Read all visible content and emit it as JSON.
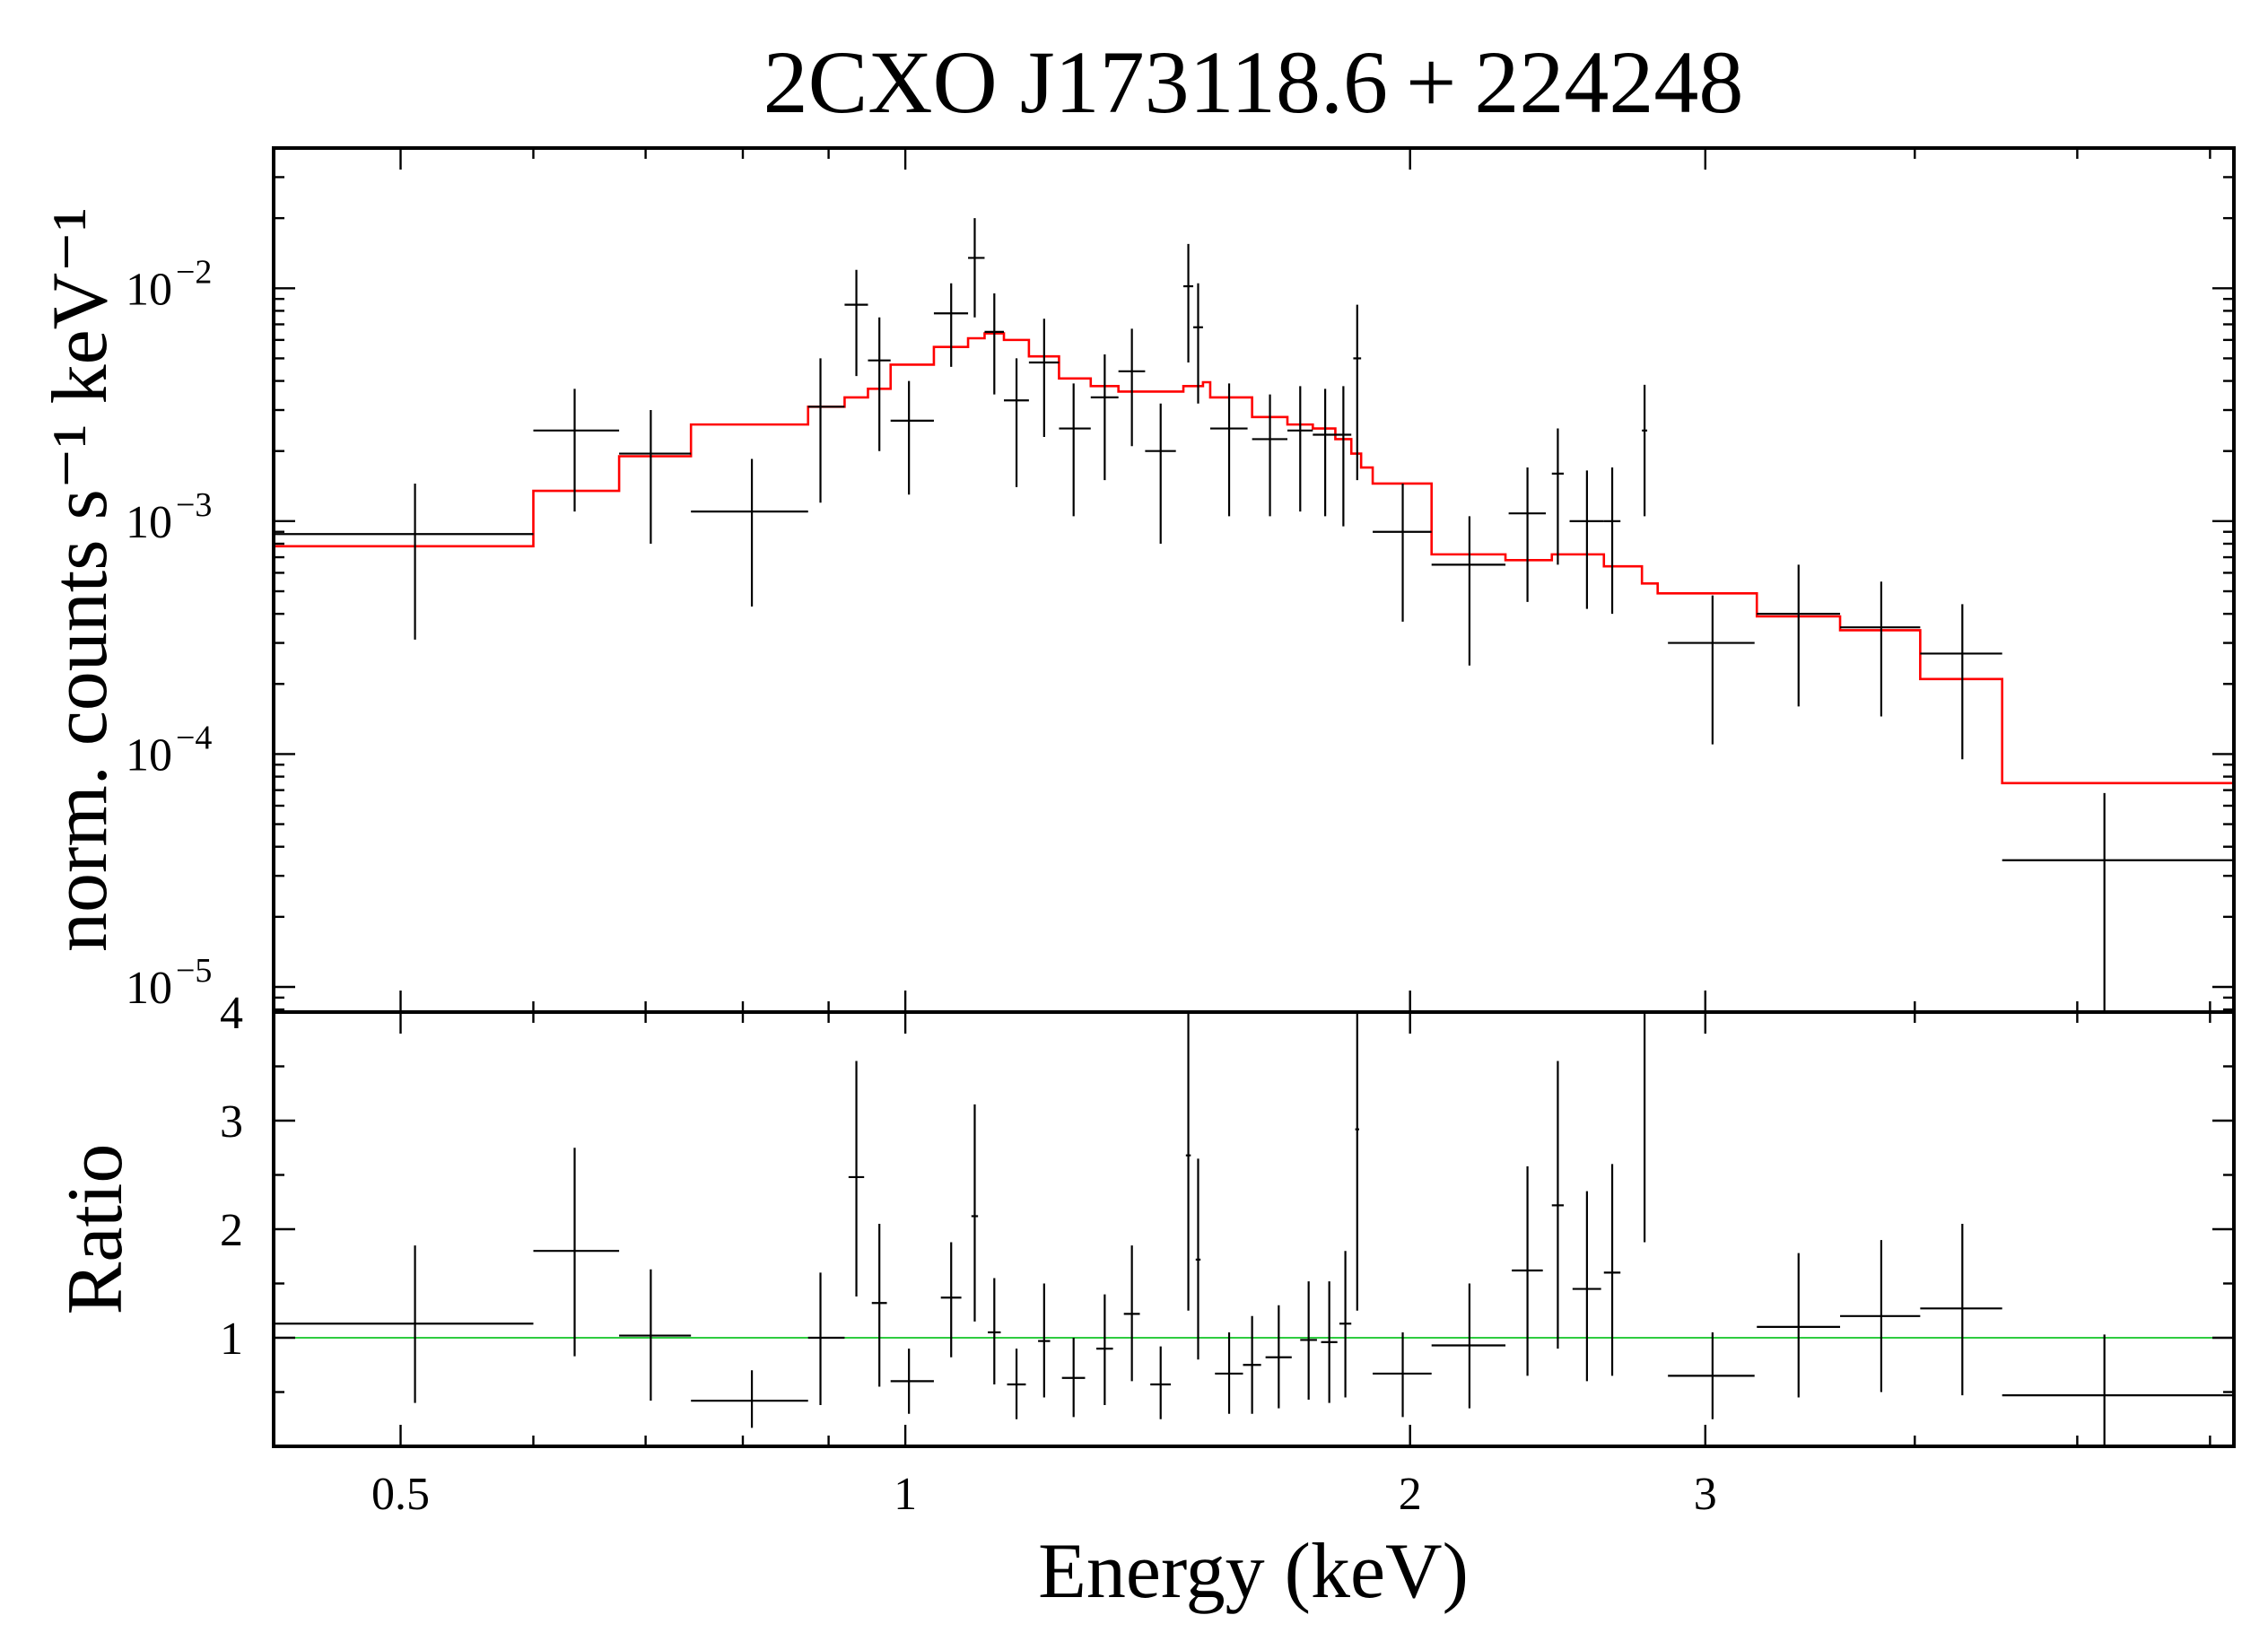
{
  "chart_data": [
    {
      "type": "scatter",
      "panel": "spectrum",
      "title": "2CXO J173118.6 + 224248",
      "ylabel": "norm. counts s⁻¹ keV⁻¹",
      "xscale": "log",
      "yscale": "log",
      "xlim": [
        0.42,
        6.2
      ],
      "ylim": [
        7.8e-06,
        0.04
      ],
      "yticks": [
        {
          "value": 1e-05,
          "base": "10",
          "exp": "−5"
        },
        {
          "value": 0.0001,
          "base": "10",
          "exp": "−4"
        },
        {
          "value": 0.001,
          "base": "10",
          "exp": "−3"
        },
        {
          "value": 0.01,
          "base": "10",
          "exp": "−2"
        }
      ],
      "series": [
        {
          "kind": "data",
          "color": "#000000",
          "points": [
            {
              "x": 0.51,
              "xlo": 0.42,
              "xhi": 0.6,
              "y": 0.00088,
              "ylo": 0.00031,
              "yhi": 0.00145
            },
            {
              "x": 0.635,
              "xlo": 0.6,
              "xhi": 0.675,
              "y": 0.00245,
              "ylo": 0.0011,
              "yhi": 0.0037
            },
            {
              "x": 0.705,
              "xlo": 0.675,
              "xhi": 0.745,
              "y": 0.00195,
              "ylo": 0.0008,
              "yhi": 0.003
            },
            {
              "x": 0.81,
              "xlo": 0.745,
              "xhi": 0.875,
              "y": 0.0011,
              "ylo": 0.00043,
              "yhi": 0.00185
            },
            {
              "x": 0.89,
              "xlo": 0.875,
              "xhi": 0.92,
              "y": 0.0031,
              "ylo": 0.0012,
              "yhi": 0.005
            },
            {
              "x": 0.935,
              "xlo": 0.92,
              "xhi": 0.95,
              "y": 0.0085,
              "ylo": 0.0042,
              "yhi": 0.012
            },
            {
              "x": 0.965,
              "xlo": 0.95,
              "xhi": 0.98,
              "y": 0.0049,
              "ylo": 0.002,
              "yhi": 0.0075
            },
            {
              "x": 1.005,
              "xlo": 0.98,
              "xhi": 1.04,
              "y": 0.0027,
              "ylo": 0.0013,
              "yhi": 0.004
            },
            {
              "x": 1.065,
              "xlo": 1.04,
              "xhi": 1.09,
              "y": 0.0078,
              "ylo": 0.0046,
              "yhi": 0.0105
            },
            {
              "x": 1.1,
              "xlo": 1.09,
              "xhi": 1.115,
              "y": 0.0135,
              "ylo": 0.0075,
              "yhi": 0.02
            },
            {
              "x": 1.13,
              "xlo": 1.115,
              "xhi": 1.145,
              "y": 0.0065,
              "ylo": 0.0035,
              "yhi": 0.0095
            },
            {
              "x": 1.165,
              "xlo": 1.145,
              "xhi": 1.185,
              "y": 0.0033,
              "ylo": 0.0014,
              "yhi": 0.005
            },
            {
              "x": 1.21,
              "xlo": 1.185,
              "xhi": 1.235,
              "y": 0.0048,
              "ylo": 0.0023,
              "yhi": 0.0074
            },
            {
              "x": 1.26,
              "xlo": 1.235,
              "xhi": 1.29,
              "y": 0.0025,
              "ylo": 0.00105,
              "yhi": 0.0039
            },
            {
              "x": 1.315,
              "xlo": 1.29,
              "xhi": 1.34,
              "y": 0.0034,
              "ylo": 0.0015,
              "yhi": 0.0052
            },
            {
              "x": 1.365,
              "xlo": 1.34,
              "xhi": 1.39,
              "y": 0.0044,
              "ylo": 0.0021,
              "yhi": 0.0067
            },
            {
              "x": 1.42,
              "xlo": 1.39,
              "xhi": 1.45,
              "y": 0.002,
              "ylo": 0.0008,
              "yhi": 0.0032
            },
            {
              "x": 1.475,
              "xlo": 1.465,
              "xhi": 1.485,
              "y": 0.0102,
              "ylo": 0.0048,
              "yhi": 0.0155
            },
            {
              "x": 1.495,
              "xlo": 1.485,
              "xhi": 1.505,
              "y": 0.0068,
              "ylo": 0.0032,
              "yhi": 0.0105
            },
            {
              "x": 1.56,
              "xlo": 1.52,
              "xhi": 1.6,
              "y": 0.0025,
              "ylo": 0.00105,
              "yhi": 0.0039
            },
            {
              "x": 1.65,
              "xlo": 1.61,
              "xhi": 1.69,
              "y": 0.00225,
              "ylo": 0.00105,
              "yhi": 0.0035
            },
            {
              "x": 1.72,
              "xlo": 1.69,
              "xhi": 1.75,
              "y": 0.00245,
              "ylo": 0.0011,
              "yhi": 0.0038
            },
            {
              "x": 1.78,
              "xlo": 1.75,
              "xhi": 1.805,
              "y": 0.00235,
              "ylo": 0.00105,
              "yhi": 0.0037
            },
            {
              "x": 1.825,
              "xlo": 1.805,
              "xhi": 1.845,
              "y": 0.00235,
              "ylo": 0.00095,
              "yhi": 0.0038
            },
            {
              "x": 1.86,
              "xlo": 1.85,
              "xhi": 1.87,
              "y": 0.005,
              "ylo": 0.0015,
              "yhi": 0.0085
            },
            {
              "x": 1.98,
              "xlo": 1.9,
              "xhi": 2.06,
              "y": 0.0009,
              "ylo": 0.00037,
              "yhi": 0.00145
            },
            {
              "x": 2.17,
              "xlo": 2.06,
              "xhi": 2.28,
              "y": 0.00065,
              "ylo": 0.00024,
              "yhi": 0.00105
            },
            {
              "x": 2.35,
              "xlo": 2.29,
              "xhi": 2.41,
              "y": 0.00108,
              "ylo": 0.00045,
              "yhi": 0.0017
            },
            {
              "x": 2.45,
              "xlo": 2.43,
              "xhi": 2.47,
              "y": 0.0016,
              "ylo": 0.00065,
              "yhi": 0.0025
            },
            {
              "x": 2.55,
              "xlo": 2.49,
              "xhi": 2.61,
              "y": 0.001,
              "ylo": 0.00042,
              "yhi": 0.00165
            },
            {
              "x": 2.64,
              "xlo": 2.61,
              "xhi": 2.67,
              "y": 0.001,
              "ylo": 0.0004,
              "yhi": 0.0017
            },
            {
              "x": 2.76,
              "xlo": 2.75,
              "xhi": 2.77,
              "y": 0.00245,
              "ylo": 0.00105,
              "yhi": 0.00385
            },
            {
              "x": 3.03,
              "xlo": 2.85,
              "xhi": 3.21,
              "y": 0.0003,
              "ylo": 0.00011,
              "yhi": 0.00048
            },
            {
              "x": 3.41,
              "xlo": 3.22,
              "xhi": 3.61,
              "y": 0.0004,
              "ylo": 0.00016,
              "yhi": 0.00065
            },
            {
              "x": 3.82,
              "xlo": 3.61,
              "xhi": 4.03,
              "y": 0.00035,
              "ylo": 0.000145,
              "yhi": 0.00055
            },
            {
              "x": 4.27,
              "xlo": 4.03,
              "xhi": 4.51,
              "y": 0.00027,
              "ylo": 9.5e-05,
              "yhi": 0.00044
            },
            {
              "x": 5.19,
              "xlo": 4.51,
              "xhi": 6.2,
              "y": 3.5e-05,
              "ylo": 7.8e-06,
              "yhi": 6.8e-05
            }
          ]
        },
        {
          "kind": "model",
          "color": "#ff0000",
          "steps": [
            [
              0.42,
              0.00078
            ],
            [
              0.6,
              0.00135
            ],
            [
              0.675,
              0.0019
            ],
            [
              0.745,
              0.0026
            ],
            [
              0.875,
              0.0031
            ],
            [
              0.92,
              0.0034
            ],
            [
              0.95,
              0.0037
            ],
            [
              0.98,
              0.0047
            ],
            [
              1.04,
              0.0056
            ],
            [
              1.09,
              0.0061
            ],
            [
              1.115,
              0.0064
            ],
            [
              1.145,
              0.006
            ],
            [
              1.185,
              0.0051
            ],
            [
              1.235,
              0.0041
            ],
            [
              1.29,
              0.0038
            ],
            [
              1.34,
              0.0036
            ],
            [
              1.465,
              0.0038
            ],
            [
              1.505,
              0.00395
            ],
            [
              1.52,
              0.0034
            ],
            [
              1.61,
              0.0028
            ],
            [
              1.69,
              0.0026
            ],
            [
              1.75,
              0.0025
            ],
            [
              1.805,
              0.00225
            ],
            [
              1.845,
              0.00195
            ],
            [
              1.87,
              0.0017
            ],
            [
              1.9,
              0.00145
            ],
            [
              2.06,
              0.00072
            ],
            [
              2.28,
              0.00068
            ],
            [
              2.43,
              0.00072
            ],
            [
              2.61,
              0.00064
            ],
            [
              2.75,
              0.00054
            ],
            [
              2.81,
              0.00049
            ],
            [
              3.22,
              0.00039
            ],
            [
              3.61,
              0.00034
            ],
            [
              4.03,
              0.00021
            ],
            [
              4.51,
              7.5e-05
            ],
            [
              6.2,
              7.5e-05
            ]
          ]
        }
      ]
    },
    {
      "type": "scatter",
      "panel": "ratio",
      "xlabel": "Energy (keV)",
      "ylabel": "Ratio",
      "xscale": "log",
      "xlim": [
        0.42,
        6.2
      ],
      "ylim": [
        0.0,
        4.0
      ],
      "yticks": [
        {
          "value": 1,
          "label": "1"
        },
        {
          "value": 2,
          "label": "2"
        },
        {
          "value": 3,
          "label": "3"
        },
        {
          "value": 4,
          "label": "4"
        }
      ],
      "xticks": [
        {
          "value": 0.5,
          "label": "0.5"
        },
        {
          "value": 1,
          "label": "1"
        },
        {
          "value": 2,
          "label": "2"
        },
        {
          "value": 3,
          "label": "3"
        }
      ],
      "reference_line": {
        "y": 1.0,
        "color": "#2ecc40"
      },
      "series": [
        {
          "kind": "ratio",
          "color": "#000000",
          "points": [
            {
              "x": 0.51,
              "xlo": 0.42,
              "xhi": 0.6,
              "y": 1.13,
              "ylo": 0.4,
              "yhi": 1.85
            },
            {
              "x": 0.635,
              "xlo": 0.6,
              "xhi": 0.675,
              "y": 1.8,
              "ylo": 0.83,
              "yhi": 2.75
            },
            {
              "x": 0.705,
              "xlo": 0.675,
              "xhi": 0.745,
              "y": 1.02,
              "ylo": 0.42,
              "yhi": 1.63
            },
            {
              "x": 0.81,
              "xlo": 0.745,
              "xhi": 0.875,
              "y": 0.42,
              "ylo": 0.17,
              "yhi": 0.7
            },
            {
              "x": 0.89,
              "xlo": 0.875,
              "xhi": 0.92,
              "y": 1.0,
              "ylo": 0.38,
              "yhi": 1.6
            },
            {
              "x": 0.935,
              "xlo": 0.925,
              "xhi": 0.945,
              "y": 2.48,
              "ylo": 1.38,
              "yhi": 3.55
            },
            {
              "x": 0.965,
              "xlo": 0.955,
              "xhi": 0.975,
              "y": 1.32,
              "ylo": 0.55,
              "yhi": 2.05
            },
            {
              "x": 1.005,
              "xlo": 0.98,
              "xhi": 1.04,
              "y": 0.6,
              "ylo": 0.3,
              "yhi": 0.9
            },
            {
              "x": 1.065,
              "xlo": 1.05,
              "xhi": 1.08,
              "y": 1.37,
              "ylo": 0.82,
              "yhi": 1.88
            },
            {
              "x": 1.1,
              "xlo": 1.095,
              "xhi": 1.105,
              "y": 2.12,
              "ylo": 1.15,
              "yhi": 3.15
            },
            {
              "x": 1.13,
              "xlo": 1.12,
              "xhi": 1.14,
              "y": 1.05,
              "ylo": 0.57,
              "yhi": 1.55
            },
            {
              "x": 1.165,
              "xlo": 1.15,
              "xhi": 1.18,
              "y": 0.57,
              "ylo": 0.25,
              "yhi": 0.9
            },
            {
              "x": 1.21,
              "xlo": 1.2,
              "xhi": 1.22,
              "y": 0.97,
              "ylo": 0.45,
              "yhi": 1.5
            },
            {
              "x": 1.26,
              "xlo": 1.24,
              "xhi": 1.28,
              "y": 0.63,
              "ylo": 0.27,
              "yhi": 1.0
            },
            {
              "x": 1.315,
              "xlo": 1.3,
              "xhi": 1.33,
              "y": 0.9,
              "ylo": 0.38,
              "yhi": 1.4
            },
            {
              "x": 1.365,
              "xlo": 1.35,
              "xhi": 1.38,
              "y": 1.22,
              "ylo": 0.6,
              "yhi": 1.85
            },
            {
              "x": 1.42,
              "xlo": 1.4,
              "xhi": 1.44,
              "y": 0.57,
              "ylo": 0.25,
              "yhi": 0.92
            },
            {
              "x": 1.475,
              "xlo": 1.47,
              "xhi": 1.48,
              "y": 2.68,
              "ylo": 1.25,
              "yhi": 4.0
            },
            {
              "x": 1.495,
              "xlo": 1.49,
              "xhi": 1.5,
              "y": 1.72,
              "ylo": 0.8,
              "yhi": 2.65
            },
            {
              "x": 1.56,
              "xlo": 1.53,
              "xhi": 1.59,
              "y": 0.67,
              "ylo": 0.3,
              "yhi": 1.05
            },
            {
              "x": 1.61,
              "xlo": 1.59,
              "xhi": 1.63,
              "y": 0.75,
              "ylo": 0.3,
              "yhi": 1.2
            },
            {
              "x": 1.67,
              "xlo": 1.64,
              "xhi": 1.7,
              "y": 0.82,
              "ylo": 0.35,
              "yhi": 1.3
            },
            {
              "x": 1.74,
              "xlo": 1.72,
              "xhi": 1.76,
              "y": 0.98,
              "ylo": 0.43,
              "yhi": 1.52
            },
            {
              "x": 1.79,
              "xlo": 1.77,
              "xhi": 1.81,
              "y": 0.96,
              "ylo": 0.4,
              "yhi": 1.52
            },
            {
              "x": 1.83,
              "xlo": 1.815,
              "xhi": 1.845,
              "y": 1.13,
              "ylo": 0.45,
              "yhi": 1.8
            },
            {
              "x": 1.86,
              "xlo": 1.855,
              "xhi": 1.865,
              "y": 2.92,
              "ylo": 1.25,
              "yhi": 4.0
            },
            {
              "x": 1.98,
              "xlo": 1.9,
              "xhi": 2.06,
              "y": 0.67,
              "ylo": 0.27,
              "yhi": 1.05
            },
            {
              "x": 2.17,
              "xlo": 2.06,
              "xhi": 2.28,
              "y": 0.93,
              "ylo": 0.35,
              "yhi": 1.5
            },
            {
              "x": 2.35,
              "xlo": 2.3,
              "xhi": 2.4,
              "y": 1.62,
              "ylo": 0.65,
              "yhi": 2.58
            },
            {
              "x": 2.45,
              "xlo": 2.43,
              "xhi": 2.47,
              "y": 2.22,
              "ylo": 0.9,
              "yhi": 3.55
            },
            {
              "x": 2.55,
              "xlo": 2.5,
              "xhi": 2.6,
              "y": 1.45,
              "ylo": 0.6,
              "yhi": 2.35
            },
            {
              "x": 2.64,
              "xlo": 2.61,
              "xhi": 2.67,
              "y": 1.6,
              "ylo": 0.65,
              "yhi": 2.6
            },
            {
              "x": 2.76,
              "xlo": 2.755,
              "xhi": 2.765,
              "y": 4.0,
              "ylo": 1.88,
              "yhi": 4.0
            },
            {
              "x": 3.03,
              "xlo": 2.85,
              "xhi": 3.21,
              "y": 0.65,
              "ylo": 0.25,
              "yhi": 1.05
            },
            {
              "x": 3.41,
              "xlo": 3.22,
              "xhi": 3.61,
              "y": 1.1,
              "ylo": 0.45,
              "yhi": 1.78
            },
            {
              "x": 3.82,
              "xlo": 3.61,
              "xhi": 4.03,
              "y": 1.2,
              "ylo": 0.5,
              "yhi": 1.9
            },
            {
              "x": 4.27,
              "xlo": 4.03,
              "xhi": 4.51,
              "y": 1.27,
              "ylo": 0.47,
              "yhi": 2.05
            },
            {
              "x": 5.19,
              "xlo": 4.51,
              "xhi": 6.2,
              "y": 0.47,
              "ylo": 0.0,
              "yhi": 1.03
            }
          ]
        }
      ]
    }
  ]
}
